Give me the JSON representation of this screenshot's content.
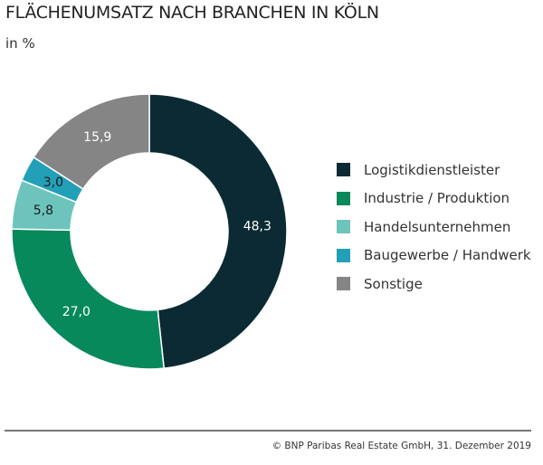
{
  "chart_data": {
    "type": "pie",
    "variant": "donut",
    "title": "FLÄCHENUMSATZ NACH BRANCHEN IN KÖLN",
    "subtitle": "in %",
    "categories": [
      "Logistikdienstleister",
      "Industrie / Produktion",
      "Handelsunternehmen",
      "Baugewerbe / Handwerk",
      "Sonstige"
    ],
    "values": [
      48.3,
      27.0,
      5.8,
      3.0,
      15.9
    ],
    "labels": [
      "48,3",
      "27,0",
      "5,8",
      "3,0",
      "15,9"
    ],
    "colors": [
      "#0b2a33",
      "#07895c",
      "#6dc4bd",
      "#22a0b7",
      "#858585"
    ],
    "legend_position": "right"
  },
  "footer": "© BNP Paribas Real Estate GmbH, 31. Dezember 2019"
}
